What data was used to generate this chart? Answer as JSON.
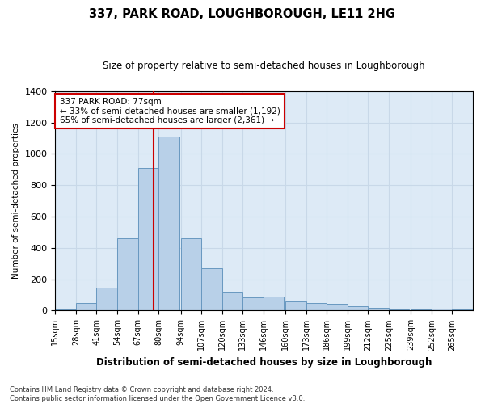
{
  "title": "337, PARK ROAD, LOUGHBOROUGH, LE11 2HG",
  "subtitle": "Size of property relative to semi-detached houses in Loughborough",
  "xlabel": "Distribution of semi-detached houses by size in Loughborough",
  "ylabel": "Number of semi-detached properties",
  "bins": [
    "15sqm",
    "28sqm",
    "41sqm",
    "54sqm",
    "67sqm",
    "80sqm",
    "94sqm",
    "107sqm",
    "120sqm",
    "133sqm",
    "146sqm",
    "160sqm",
    "173sqm",
    "186sqm",
    "199sqm",
    "212sqm",
    "225sqm",
    "239sqm",
    "252sqm",
    "265sqm"
  ],
  "values": [
    10,
    50,
    145,
    460,
    910,
    1110,
    460,
    270,
    115,
    85,
    90,
    60,
    50,
    45,
    30,
    20,
    5,
    5,
    15,
    5
  ],
  "bar_color": "#b8d0e8",
  "bar_edge_color": "#6898c0",
  "grid_color": "#c8d8e8",
  "background_color": "#ddeaf6",
  "annotation_text": "337 PARK ROAD: 77sqm\n← 33% of semi-detached houses are smaller (1,192)\n65% of semi-detached houses are larger (2,361) →",
  "vline_x": 77,
  "vline_color": "#cc0000",
  "annotation_box_color": "#ffffff",
  "annotation_box_edge": "#cc0000",
  "ylim": [
    0,
    1400
  ],
  "footnote": "Contains HM Land Registry data © Crown copyright and database right 2024.\nContains public sector information licensed under the Open Government Licence v3.0.",
  "bin_width": 13,
  "bin_starts": [
    15,
    28,
    41,
    54,
    67,
    80,
    94,
    107,
    120,
    133,
    146,
    160,
    173,
    186,
    199,
    212,
    225,
    239,
    252,
    265
  ]
}
